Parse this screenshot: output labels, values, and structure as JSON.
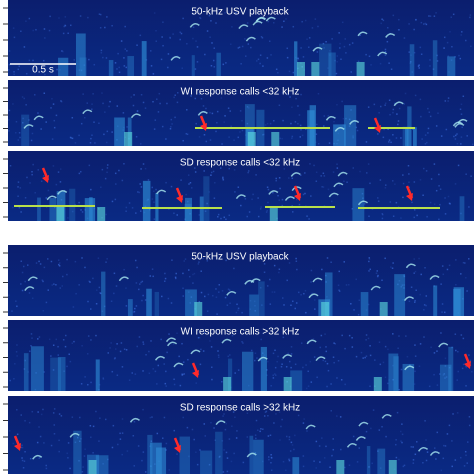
{
  "panels": [
    {
      "title": "50-kHz USV playback"
    },
    {
      "title": "WI response calls <32 kHz"
    },
    {
      "title": "SD response calls <32 kHz"
    },
    {
      "title": "50-kHz USV playback"
    },
    {
      "title": "WI response calls >32 kHz"
    },
    {
      "title": "SD response calls >32 kHz"
    }
  ],
  "scale_bar": "0.5 s"
}
